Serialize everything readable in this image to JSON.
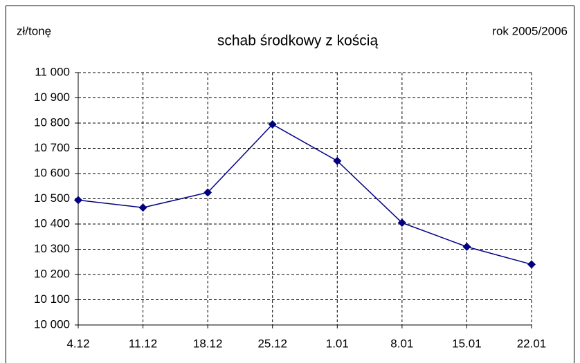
{
  "chart_data": {
    "type": "line",
    "title": "schab środkowy z kością",
    "y_label": "zł/tonę",
    "annotation": "rok 2005/2006",
    "categories": [
      "4.12",
      "11.12",
      "18.12",
      "25.12",
      "1.01",
      "8.01",
      "15.01",
      "22.01"
    ],
    "series": [
      {
        "name": "schab środkowy z kością",
        "color": "#000080",
        "values": [
          10495,
          10465,
          10525,
          10795,
          10650,
          10405,
          10310,
          10240
        ]
      }
    ],
    "ylim": [
      10000,
      11000
    ],
    "yticks": [
      {
        "value": 10000,
        "label": "10 000"
      },
      {
        "value": 10100,
        "label": "10 100"
      },
      {
        "value": 10200,
        "label": "10 200"
      },
      {
        "value": 10300,
        "label": "10 300"
      },
      {
        "value": 10400,
        "label": "10 400"
      },
      {
        "value": 10500,
        "label": "10 500"
      },
      {
        "value": 10600,
        "label": "10 600"
      },
      {
        "value": 10700,
        "label": "10 700"
      },
      {
        "value": 10800,
        "label": "10 800"
      },
      {
        "value": 10900,
        "label": "10 900"
      },
      {
        "value": 11000,
        "label": "11 000"
      }
    ],
    "grid": true
  }
}
